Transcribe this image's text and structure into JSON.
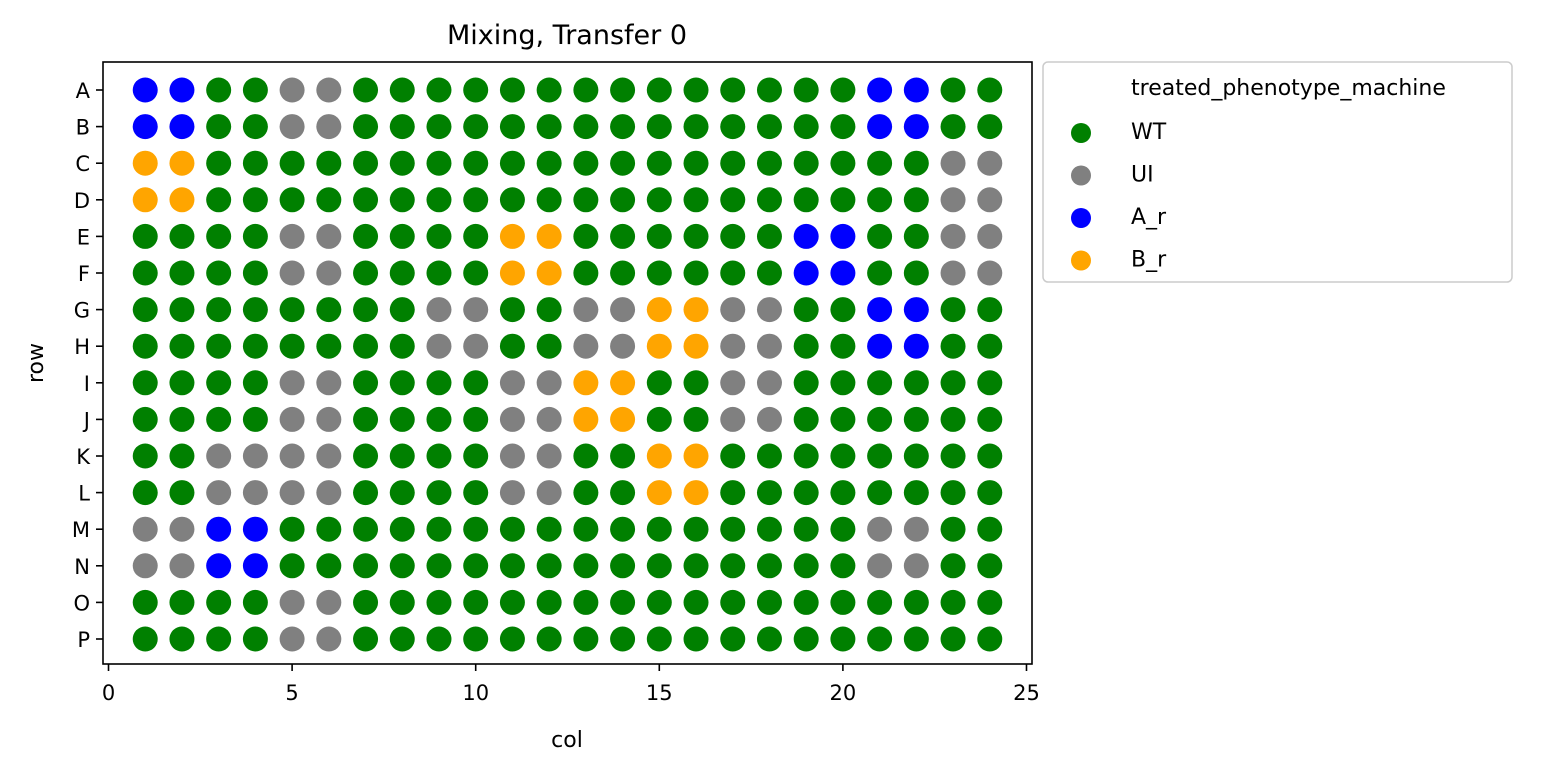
{
  "chart_data": {
    "type": "scatter",
    "title": "Mixing, Transfer 0",
    "xlabel": "col",
    "ylabel": "row",
    "xlim": [
      -0.15,
      25.15
    ],
    "x_ticks": [
      0,
      5,
      10,
      15,
      20,
      25
    ],
    "rows": [
      "A",
      "B",
      "C",
      "D",
      "E",
      "F",
      "G",
      "H",
      "I",
      "J",
      "K",
      "L",
      "M",
      "N",
      "O",
      "P"
    ],
    "cols": [
      1,
      2,
      3,
      4,
      5,
      6,
      7,
      8,
      9,
      10,
      11,
      12,
      13,
      14,
      15,
      16,
      17,
      18,
      19,
      20,
      21,
      22,
      23,
      24
    ],
    "legend": {
      "title": "treated_phenotype_machine",
      "placement": "outside-upper-right",
      "entries": [
        {
          "code": "W",
          "label": "WT",
          "color": "#008000"
        },
        {
          "code": "U",
          "label": "UI",
          "color": "#808080"
        },
        {
          "code": "A",
          "label": "A_r",
          "color": "#0000ff"
        },
        {
          "code": "B",
          "label": "B_r",
          "color": "#ffa500"
        }
      ]
    },
    "grid": [
      "AAWWUUWWWWWWWWWWWWWWAAWW",
      "AAWWUUWWWWWWWWWWWWWWAAWW",
      "BBWWWWWWWWWWWWWWWWWWWWUU",
      "BBWWWWWWWWWWWWWWWWWWWWUU",
      "WWWWUUWWWWBBWWWWWWAAWWUU",
      "WWWWUUWWWWBBWWWWWWAAWWUU",
      "WWWWWWWWUUWWUUBBUUWWAAWW",
      "WWWWWWWWUUWWUUBBUUWWAAWW",
      "WWWWUUWWWWUUBBWWUUWWWWWW",
      "WWWWUUWWWWUUBBWWUUWWWWWW",
      "WWUUUUWWWWUUWWBBWWWWWWWW",
      "WWUUUUWWWWUUWWBBWWWWWWWW",
      "UUAAWWWWWWWWWWWWWWWWUUWW",
      "UUAAWWWWWWWWWWWWWWWWUUWW",
      "WWWWUUWWWWWWWWWWWWWWWWWW",
      "WWWWUUWWWWWWWWWWWWWWWWWW"
    ]
  }
}
